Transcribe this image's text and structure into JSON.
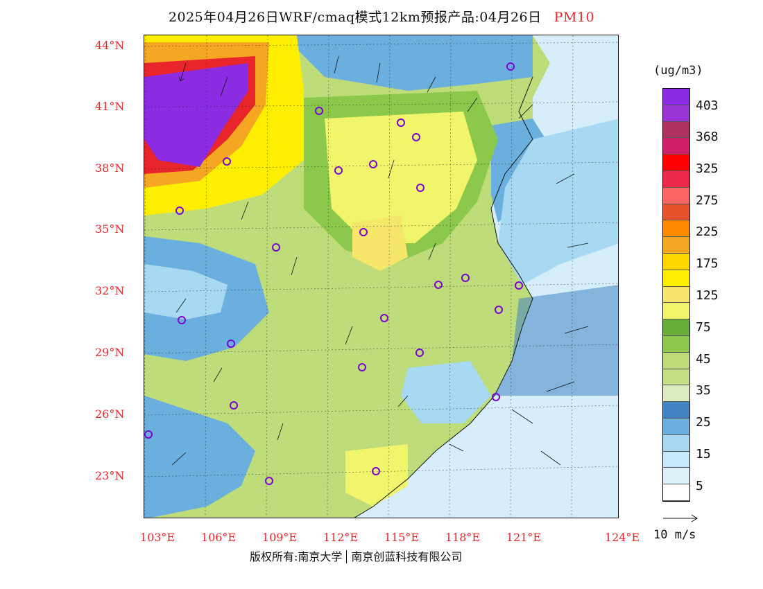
{
  "title": {
    "main": "2025年04月26日WRF/cmaq模式12km预报产品:04月26日",
    "variable": "PM10"
  },
  "map": {
    "lat_labels": [
      "44°N",
      "41°N",
      "38°N",
      "35°N",
      "32°N",
      "29°N",
      "26°N",
      "23°N"
    ],
    "lon_labels": [
      "103°E",
      "106°E",
      "109°E",
      "112°E",
      "115°E",
      "118°E",
      "121°E",
      "124°E"
    ],
    "colors": {
      "ocean": "#d6eef9",
      "low_blue": "#a7d9f3",
      "mid_blue": "#6aafdd",
      "dark_blue": "#4184c4",
      "light_green": "#dcebc0",
      "green": "#bfdc7a",
      "dark_green": "#6aae3a",
      "yellow": "#f2ee6a",
      "gold": "#ffd400",
      "orange": "#f5a623",
      "red": "#e8252a",
      "purple": "#8a2be2"
    }
  },
  "legend": {
    "unit": "(ug/m3)",
    "colors": [
      "#8b2be2",
      "#9b35d8",
      "#b03060",
      "#d0206a",
      "#ff0000",
      "#ee2a4a",
      "#ff6464",
      "#e8512a",
      "#ff8a00",
      "#f5a623",
      "#ffd400",
      "#ffee00",
      "#f6e76a",
      "#f0f56b",
      "#6aae3a",
      "#8cc84b",
      "#bfdc7a",
      "#c4de84",
      "#dcebc0",
      "#4184c4",
      "#6aafdd",
      "#a7d9f3",
      "#c6e8f8",
      "#ddf1fb",
      "#ffffff"
    ],
    "labels": [
      "403",
      "368",
      "325",
      "275",
      "225",
      "175",
      "125",
      "75",
      "45",
      "35",
      "25",
      "15",
      "5"
    ]
  },
  "wind_reference": {
    "label": "10 m/s"
  },
  "footer": {
    "copyright_left": "版权所有:南京大学",
    "copyright_right": "南京创蓝科技有限公司"
  }
}
